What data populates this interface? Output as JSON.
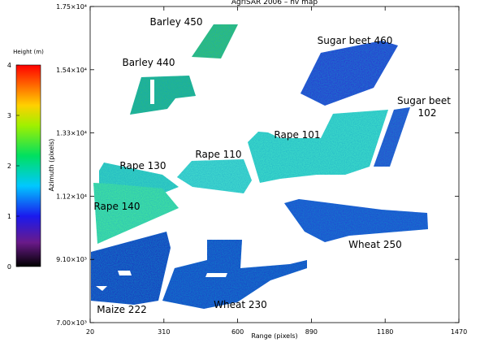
{
  "chart_data": {
    "type": "map",
    "title": "AgriSAR 2006 – hv map",
    "xlabel": "Range (pixels)",
    "ylabel": "Azimuth (pixels)",
    "xlim": [
      20,
      1470
    ],
    "xticks": [
      20,
      310,
      600,
      890,
      1180,
      1470
    ],
    "ylim": [
      7000,
      17500
    ],
    "yticks": [
      {
        "value": 7000,
        "label": "7.00×10³"
      },
      {
        "value": 9100,
        "label": "9.10×10³"
      },
      {
        "value": 11200,
        "label": "1.12×10⁴"
      },
      {
        "value": 13300,
        "label": "1.33×10⁴"
      },
      {
        "value": 15400,
        "label": "1.54×10⁴"
      },
      {
        "value": 17500,
        "label": "1.75×10⁴"
      }
    ],
    "colorbar": {
      "label": "Height (m)",
      "lim": [
        0,
        4
      ],
      "ticks": [
        0,
        1,
        2,
        3,
        4
      ]
    },
    "annotations": [
      {
        "lines": [
          "Barley 450"
        ]
      },
      {
        "lines": [
          "Barley 440"
        ]
      },
      {
        "lines": [
          "Sugar beet 460"
        ]
      },
      {
        "lines": [
          "Sugar beet",
          "102"
        ]
      },
      {
        "lines": [
          "Rape 101"
        ]
      },
      {
        "lines": [
          "Rape 110"
        ]
      },
      {
        "lines": [
          "Rape 130"
        ]
      },
      {
        "lines": [
          "Rape 140"
        ]
      },
      {
        "lines": [
          "Wheat 250"
        ]
      },
      {
        "lines": [
          "Maize 222"
        ]
      },
      {
        "lines": [
          "Wheat 230"
        ]
      }
    ]
  }
}
